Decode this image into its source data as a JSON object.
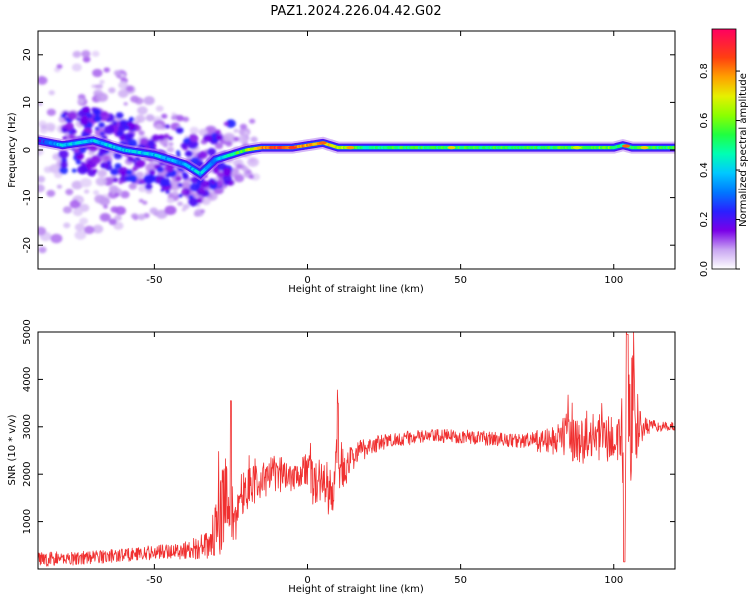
{
  "figure": {
    "title": "PAZ1.2024.226.04.42.G02"
  },
  "chart_data": [
    {
      "type": "heatmap",
      "title": "PAZ1.2024.226.04.42.G02",
      "xlabel": "Height of straight line (km)",
      "ylabel": "Frequency (Hz)",
      "xlim": [
        -88,
        120
      ],
      "ylim": [
        -25,
        25
      ],
      "xticks": [
        -50,
        0,
        50,
        100
      ],
      "yticks": [
        -20,
        -10,
        0,
        10,
        20
      ],
      "colorbar": {
        "label": "Normalized spectral amplitude",
        "range": [
          0.0,
          0.97
        ],
        "ticks": [
          "0.0",
          "0.2",
          "0.4",
          "0.6",
          "0.8"
        ]
      },
      "ridge": {
        "x": [
          -88,
          -80,
          -70,
          -60,
          -50,
          -40,
          -35,
          -30,
          -25,
          -20,
          -15,
          -10,
          -5,
          0,
          5,
          10,
          15,
          20,
          30,
          40,
          50,
          60,
          70,
          80,
          90,
          95,
          100,
          103,
          106,
          110,
          120
        ],
        "freq": [
          2,
          1,
          2,
          0,
          -1,
          -3,
          -5,
          -2,
          -1,
          0,
          0.5,
          0.5,
          0.5,
          1,
          1.5,
          0.5,
          0.5,
          0.5,
          0.5,
          0.5,
          0.5,
          0.5,
          0.5,
          0.5,
          0.5,
          0.5,
          0.5,
          1,
          0.5,
          0.5,
          0.5
        ],
        "amplitude": [
          0.2,
          0.4,
          0.4,
          0.4,
          0.4,
          0.35,
          0.4,
          0.35,
          0.5,
          0.6,
          0.8,
          0.9,
          0.85,
          0.8,
          0.8,
          0.7,
          0.6,
          0.5,
          0.55,
          0.55,
          0.55,
          0.55,
          0.55,
          0.55,
          0.6,
          0.6,
          0.6,
          0.5,
          0.55,
          0.55,
          0.55
        ]
      },
      "noise_region_x": [
        -88,
        -25
      ]
    },
    {
      "type": "line",
      "xlabel": "Height of straight line (km)",
      "ylabel": "SNR (10 * v/v)",
      "xlim": [
        -88,
        120
      ],
      "ylim": [
        0,
        5000
      ],
      "xticks": [
        -50,
        0,
        50,
        100
      ],
      "yticks": [
        1000,
        2000,
        3000,
        4000,
        5000
      ],
      "series_color": "#f03030",
      "envelope": {
        "x": [
          -88,
          -70,
          -60,
          -50,
          -40,
          -32,
          -28,
          -26,
          -25,
          -24,
          -22,
          -20,
          -15,
          -10,
          -5,
          0,
          2,
          5,
          8,
          10,
          12,
          15,
          20,
          30,
          40,
          50,
          60,
          70,
          80,
          85,
          90,
          95,
          100,
          102,
          104,
          105,
          106,
          108,
          110,
          115,
          120
        ],
        "mean": [
          200,
          250,
          300,
          350,
          400,
          500,
          1200,
          1800,
          1400,
          800,
          1600,
          1700,
          1900,
          2000,
          2000,
          2100,
          1800,
          1900,
          1500,
          2400,
          2000,
          2400,
          2600,
          2750,
          2800,
          2800,
          2750,
          2700,
          2700,
          2800,
          2700,
          2800,
          2700,
          2800,
          2600,
          2200,
          3200,
          3000,
          3000,
          3000,
          3000
        ],
        "spread": [
          150,
          150,
          150,
          150,
          200,
          300,
          900,
          1000,
          700,
          500,
          500,
          450,
          400,
          400,
          350,
          400,
          500,
          500,
          600,
          700,
          400,
          300,
          200,
          150,
          150,
          150,
          150,
          150,
          300,
          500,
          500,
          500,
          500,
          700,
          1500,
          2000,
          1500,
          600,
          200,
          100,
          100
        ]
      }
    }
  ]
}
